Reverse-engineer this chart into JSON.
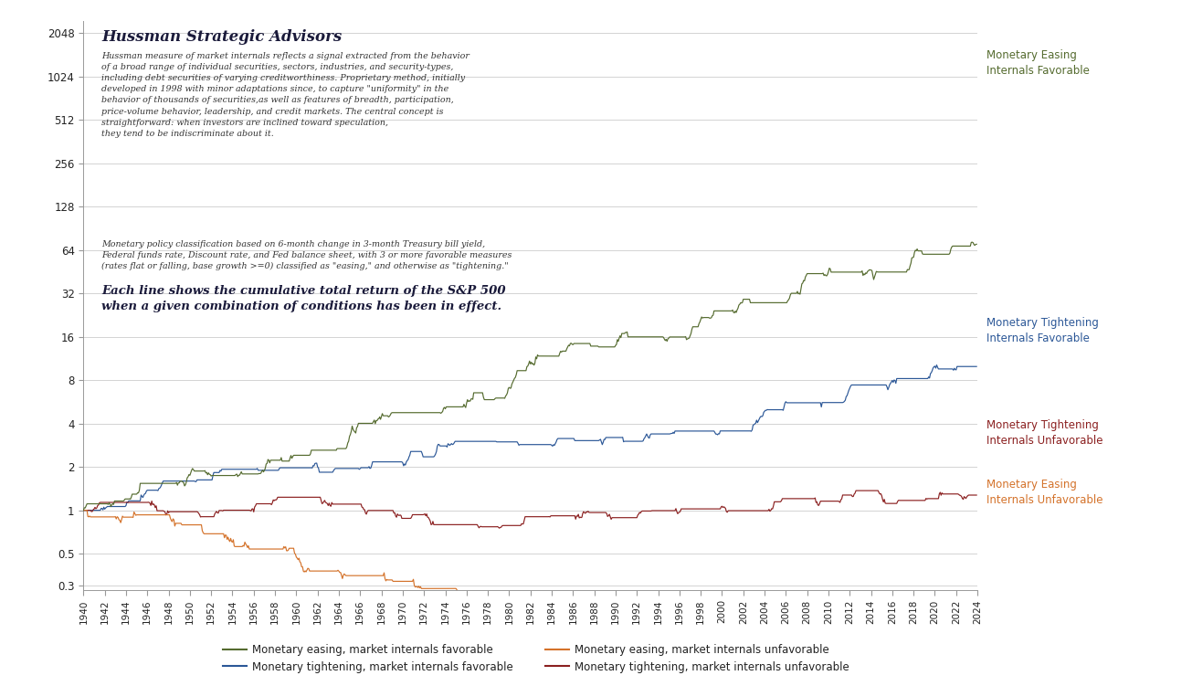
{
  "title": "Hussman Strategic Advisors",
  "annotation1": "Hussman measure of market internals reflects a signal extracted from the behavior\nof a broad range of individual securities, sectors, industries, and security-types,\nincluding debt securities of varying creditworthiness. Proprietary method, initially\ndeveloped in 1998 with minor adaptations since, to capture \"uniformity\" in the\nbehavior of thousands of securities,as well as features of breadth, participation,\nprice-volume behavior, leadership, and credit markets. The central concept is\nstraightforward: when investors are inclined toward speculation,\nthey tend to be indiscriminate about it.",
  "annotation2": "Monetary policy classification based on 6-month change in 3-month Treasury bill yield,\nFederal funds rate, Discount rate, and Fed balance sheet, with 3 or more favorable measures\n(rates flat or falling, base growth >=0) classified as \"easing,\" and otherwise as \"tightening.\"",
  "annotation3": "Each line shows the cumulative total return of the S&P 500\nwhen a given combination of conditions has been in effect.",
  "label_me_fav": "Monetary Easing\nInternals Favorable",
  "label_mt_fav": "Monetary Tightening\nInternals Favorable",
  "label_mt_unf": "Monetary Tightening\nInternals Unfavorable",
  "label_me_unf": "Monetary Easing\nInternals Unfavorable",
  "legend_me_fav": "Monetary easing, market internals favorable",
  "legend_mt_fav": "Monetary tightening, market internals favorable",
  "legend_me_unf": "Monetary easing, market internals unfavorable",
  "legend_mt_unf": "Monetary tightening, market internals unfavorable",
  "color_me_fav": "#556b2f",
  "color_mt_fav": "#2b5797",
  "color_me_unf": "#d4722a",
  "color_mt_unf": "#8b2020",
  "ylim_min": 0.28,
  "ylim_max": 2500.0,
  "yticks": [
    0.3,
    0.5,
    1.0,
    2.0,
    4.0,
    8.0,
    16.0,
    32.0,
    64.0,
    128.0,
    256.0,
    512.0,
    1024.0,
    2048.0
  ],
  "start_year": 1940,
  "end_year": 2024
}
